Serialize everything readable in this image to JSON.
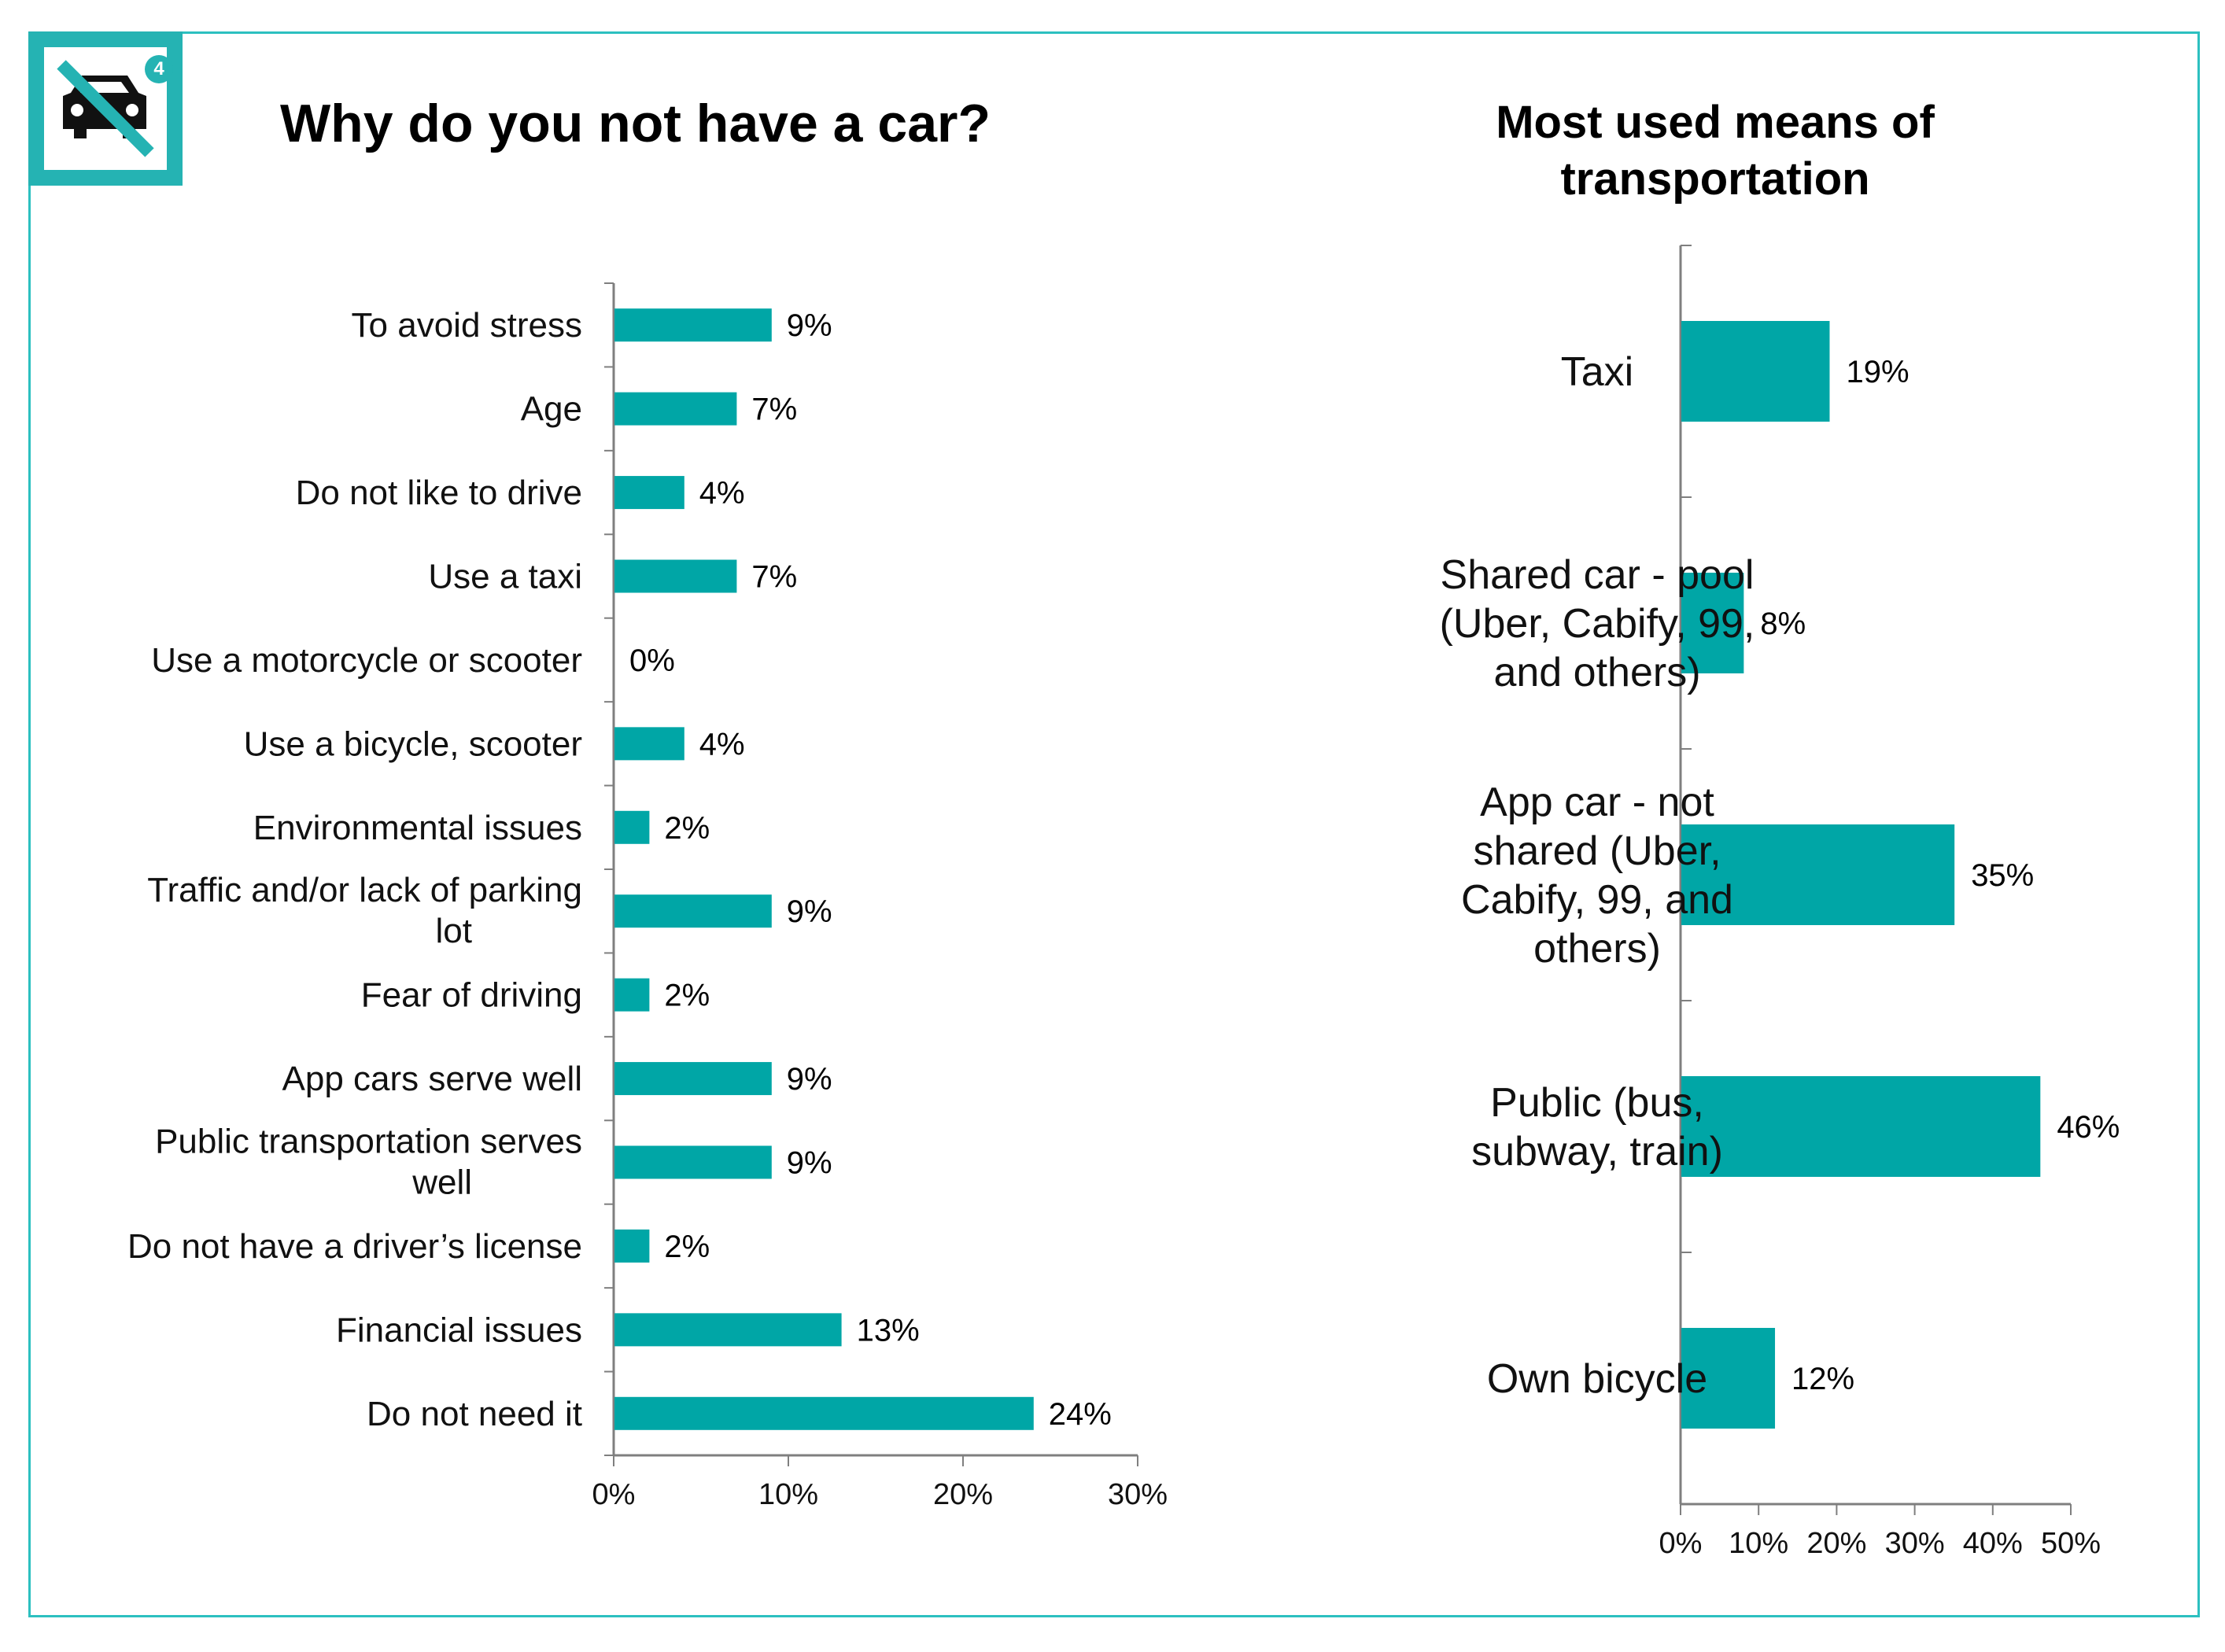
{
  "logo": {
    "icon": "no-car-icon",
    "badge": "4",
    "color": "#25b3b3"
  },
  "colors": {
    "bar": "#00a6a6",
    "axis": "#7f7f7f",
    "frame": "#2cc0c0"
  },
  "chart_data": [
    {
      "type": "bar",
      "orientation": "horizontal",
      "title": "Why do you not have a car?",
      "categories": [
        "To avoid stress",
        "Age",
        "Do not like to drive",
        "Use a taxi",
        "Use a motorcycle or scooter",
        "Use a bicycle, scooter",
        "Environmental issues",
        "Traffic and/or lack of parking lot",
        "Fear of driving",
        "App cars serve well",
        "Public transportation serves well",
        "Do not have a driver’s license",
        "Financial issues",
        "Do not need it"
      ],
      "values": [
        9,
        7,
        4,
        7,
        0,
        4,
        2,
        9,
        2,
        9,
        9,
        2,
        13,
        24
      ],
      "labels": [
        "9%",
        "7%",
        "4%",
        "7%",
        "0%",
        "4%",
        "2%",
        "9%",
        "2%",
        "9%",
        "9%",
        "2%",
        "13%",
        "24%"
      ],
      "xlim": [
        0,
        30
      ],
      "ticks": [
        0,
        10,
        20,
        30
      ],
      "tick_labels": [
        "0%",
        "10%",
        "20%",
        "30%"
      ],
      "xlabel": "",
      "ylabel": "",
      "grid": false,
      "legend": "none"
    },
    {
      "type": "bar",
      "orientation": "horizontal",
      "title": "Most used means of transportation",
      "categories": [
        "Taxi",
        "Shared car - pool (Uber, Cabify, 99, and others)",
        "App car - not shared (Uber, Cabify, 99, and others)",
        "Public (bus, subway, train)",
        "Own bicycle"
      ],
      "values": [
        19,
        8,
        35,
        46,
        12
      ],
      "labels": [
        "19%",
        "8%",
        "35%",
        "46%",
        "12%"
      ],
      "xlim": [
        0,
        50
      ],
      "ticks": [
        0,
        10,
        20,
        30,
        40,
        50
      ],
      "tick_labels": [
        "0%",
        "10%",
        "20%",
        "30%",
        "40%",
        "50%"
      ],
      "xlabel": "",
      "ylabel": "",
      "grid": false,
      "legend": "none"
    }
  ]
}
